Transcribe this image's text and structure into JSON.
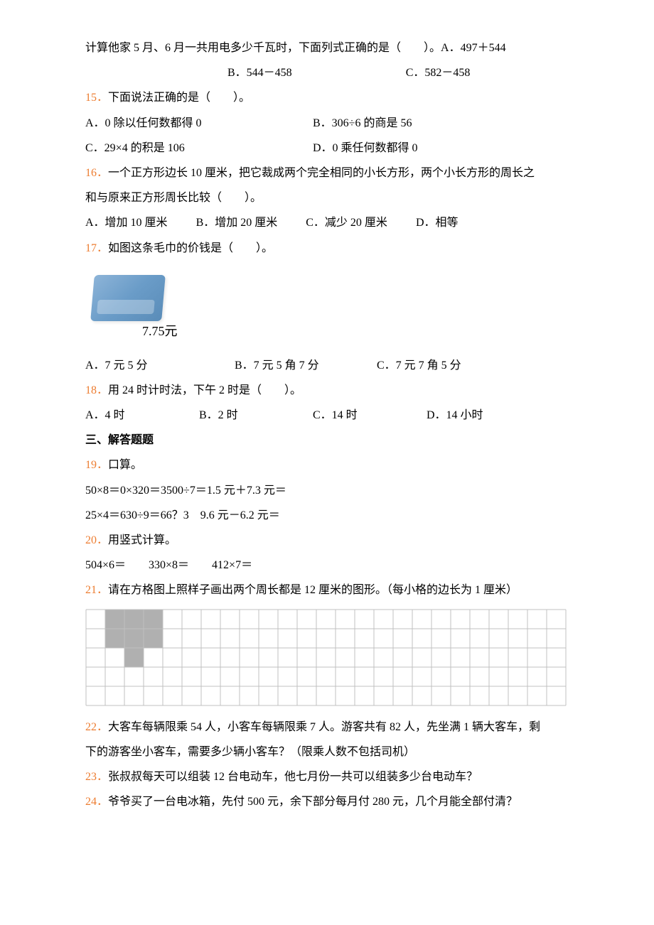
{
  "q14": {
    "stem": "计算他家 5 月、6 月一共用电多少千瓦时，下面列式正确的是（　　）。",
    "A": "A．497＋544",
    "B": "B．544－458",
    "C": "C．582－458"
  },
  "q15": {
    "num": "15．",
    "stem": "下面说法正确的是（　　）。",
    "A": "A．0 除以任何数都得 0",
    "B": "B．306÷6 的商是 56",
    "C": "C．29×4 的积是 106",
    "D": "D．0 乘任何数都得 0"
  },
  "q16": {
    "num": "16．",
    "stem": "一个正方形边长 10 厘米，把它裁成两个完全相同的小长方形，两个小长方形的周长之",
    "stem2": "和与原来正方形周长比较（　　）。",
    "A": "A．增加 10 厘米",
    "B": "B．增加 20 厘米",
    "C": "C．减少 20 厘米",
    "D": "D．相等"
  },
  "q17": {
    "num": "17．",
    "stem": "如图这条毛巾的价钱是（　　）。",
    "price": "7.75元",
    "A": "A．7 元 5 分",
    "B": "B．7 元 5 角 7 分",
    "C": "C．7 元 7 角 5 分"
  },
  "q18": {
    "num": "18．",
    "stem": "用 24 时计时法，下午 2 时是（　　）。",
    "A": "A．4 时",
    "B": "B．2 时",
    "C": "C．14 时",
    "D": "D．14 小时"
  },
  "section3": "三、解答题题",
  "q19": {
    "num": "19．",
    "stem": "口算。",
    "row1": "50×8＝0×320＝3500÷7＝1.5 元＋7.3 元＝",
    "row2": "25×4＝630÷9＝66？3　9.6 元－6.2 元＝"
  },
  "q20": {
    "num": "20．",
    "stem": "用竖式计算。",
    "row": "504×6＝　　330×8＝　　412×7＝"
  },
  "q21": {
    "num": "21．",
    "stem": "请在方格图上照样子画出两个周长都是 12 厘米的图形。（每小格的边长为 1 厘米）"
  },
  "q22": {
    "num": "22．",
    "line1": "大客车每辆限乘 54 人，小客车每辆限乘 7 人。游客共有 82 人，先坐满 1 辆大客车，剩",
    "line2": "下的游客坐小客车，需要多少辆小客车？（限乘人数不包括司机）"
  },
  "q23": {
    "num": "23．",
    "stem": "张叔叔每天可以组装 12 台电动车，他七月份一共可以组装多少台电动车？"
  },
  "q24": {
    "num": "24．",
    "stem": "爷爷买了一台电冰箱，先付 500 元，余下部分每月付 280 元，几个月能全部付清？"
  },
  "grid": {
    "cols": 25,
    "rows": 5,
    "cell": 27,
    "stroke": "#c0c0c0",
    "fill_color": "#b0b0b0",
    "shape_cells": [
      [
        0,
        1
      ],
      [
        1,
        1
      ],
      [
        0,
        2
      ],
      [
        1,
        2
      ],
      [
        2,
        2
      ],
      [
        0,
        3
      ],
      [
        1,
        3
      ]
    ]
  }
}
